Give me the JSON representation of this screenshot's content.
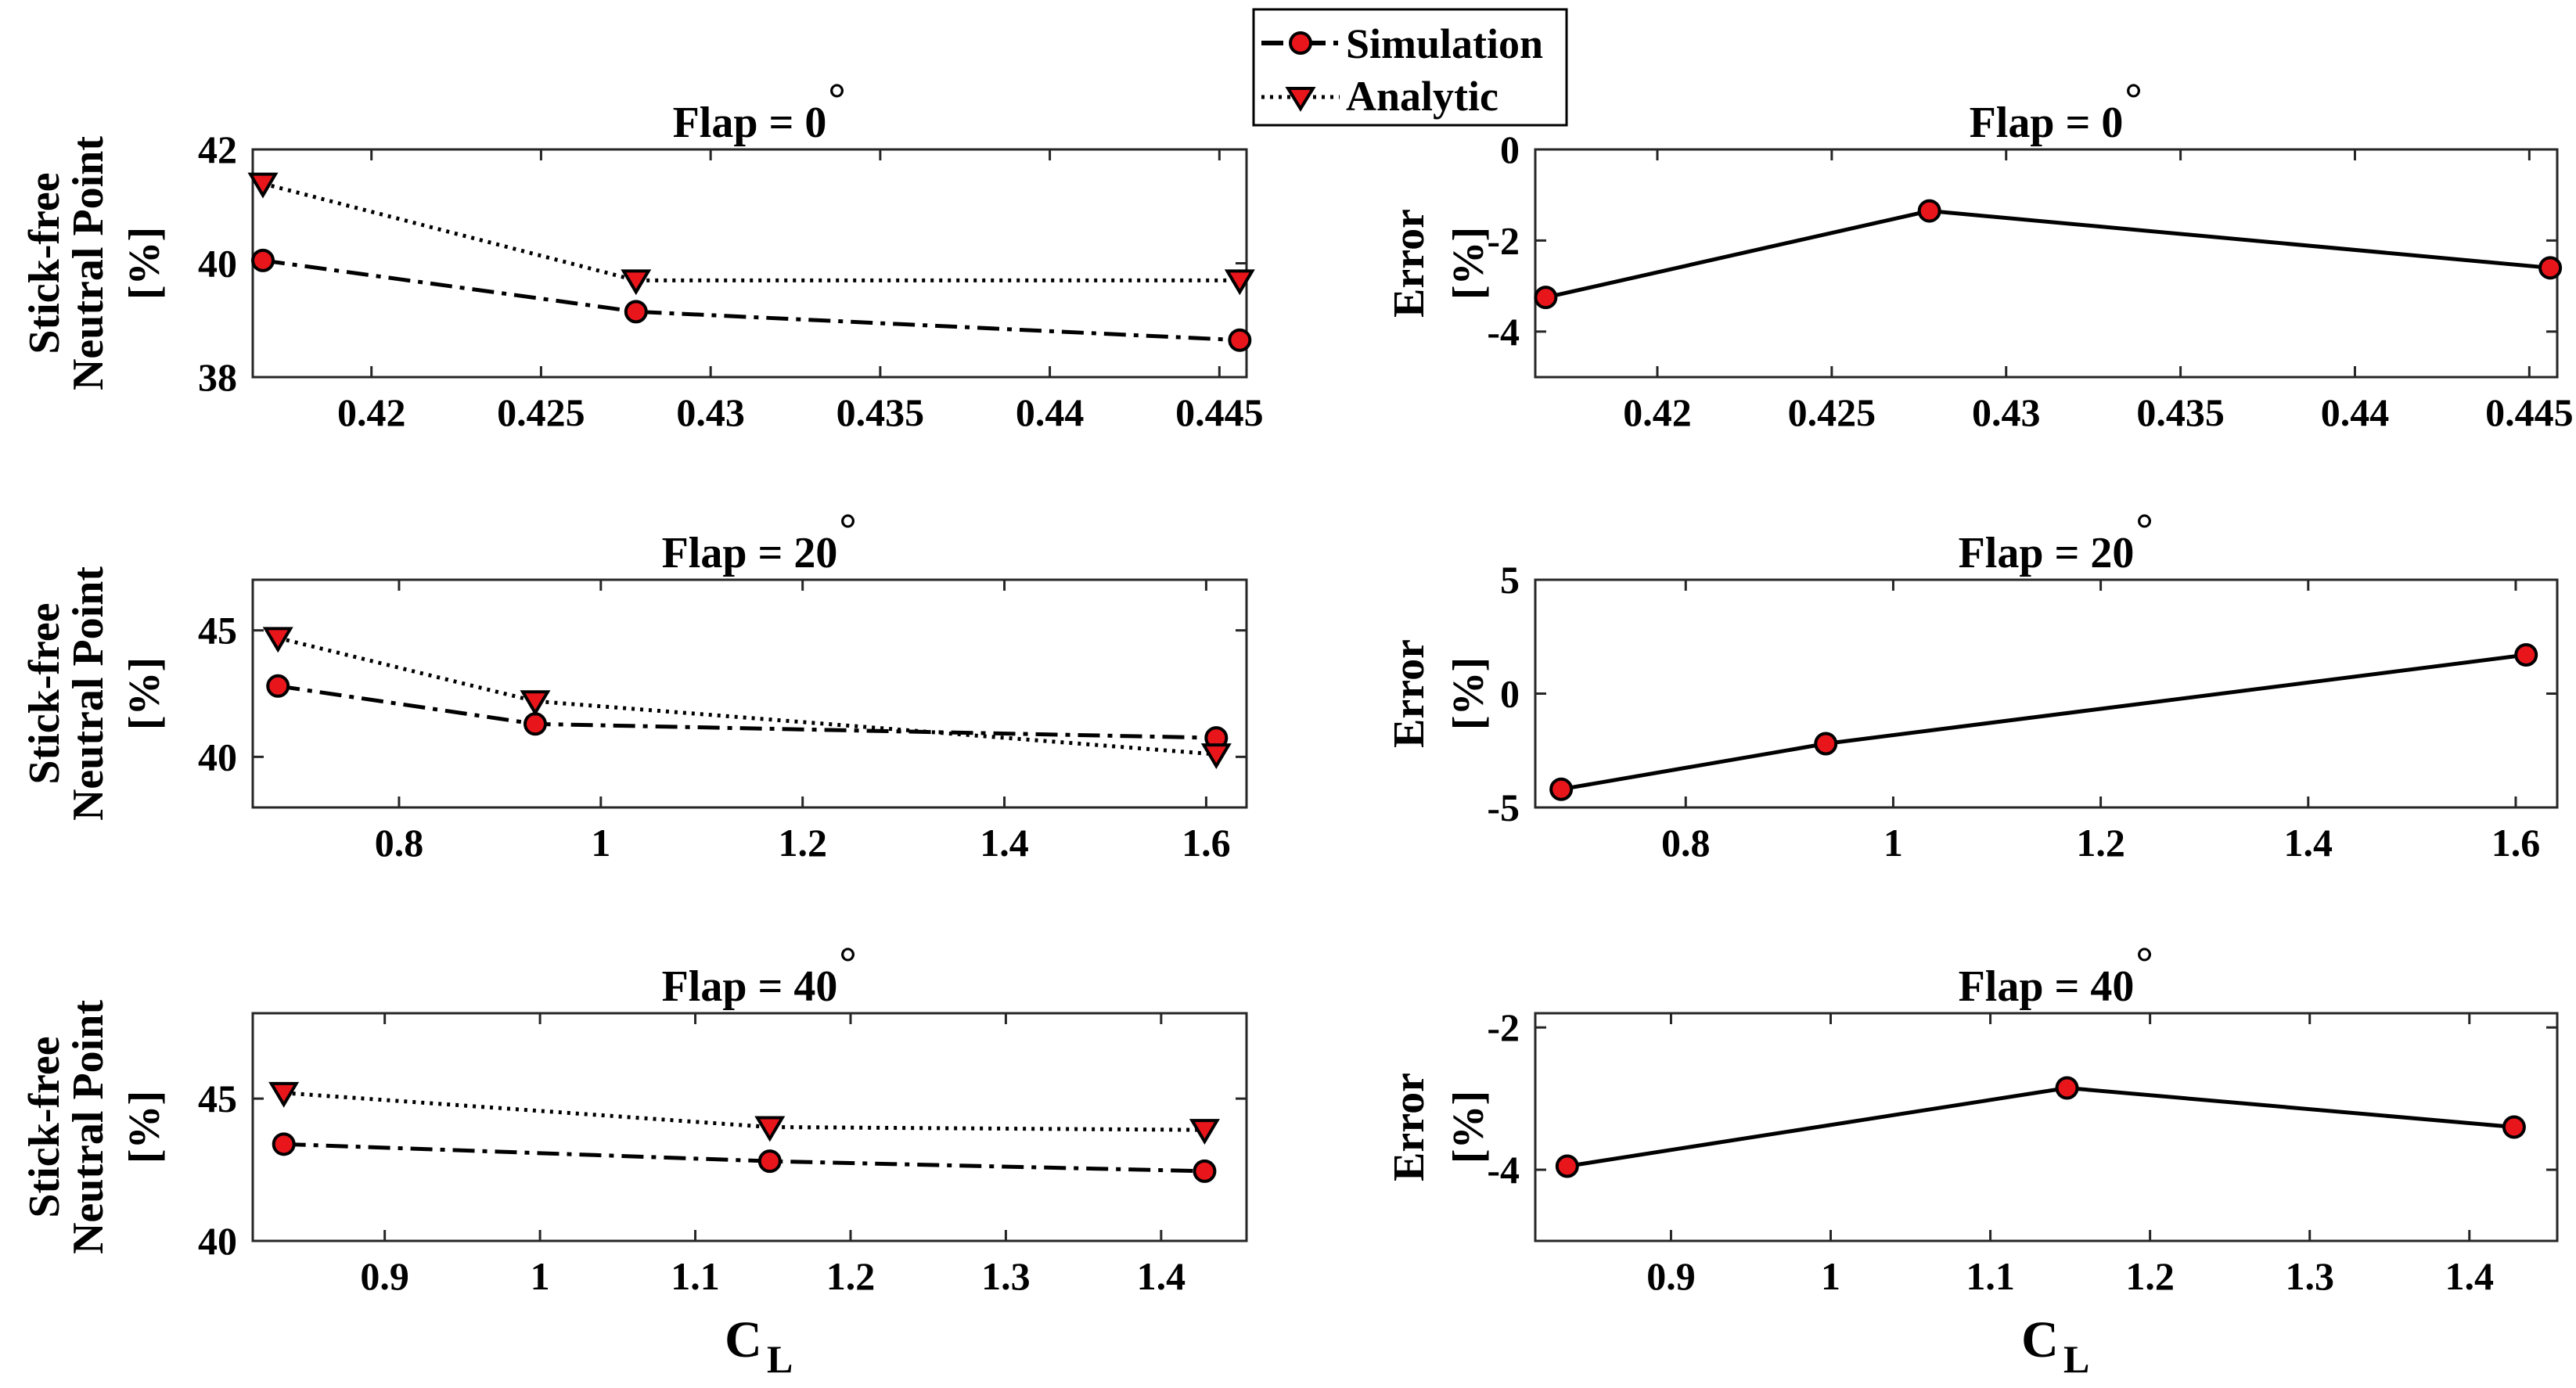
{
  "legend": {
    "position": "top-center",
    "entries": [
      {
        "label": "Simulation",
        "style": "dash-dot",
        "marker": "circle"
      },
      {
        "label": "Analytic",
        "style": "dotted",
        "marker": "triangle-down"
      }
    ]
  },
  "colors": {
    "marker_fill": "#e8151b",
    "line": "#000000",
    "background": "#ffffff"
  },
  "chart_data": [
    {
      "type": "line",
      "title": "Flap = 0",
      "title_degree": "°",
      "ylabel": [
        "Stick-free",
        "Neutral Point",
        "[%]"
      ],
      "xlabel": "",
      "xlim": [
        0.4165,
        0.4458
      ],
      "ylim": [
        38,
        42
      ],
      "xticks": [
        0.42,
        0.425,
        0.43,
        0.435,
        0.44,
        0.445
      ],
      "xtick_labels": [
        "0.42",
        "0.425",
        "0.43",
        "0.435",
        "0.44",
        "0.445"
      ],
      "yticks": [
        38,
        40,
        42
      ],
      "ytick_labels": [
        "38",
        "40",
        "42"
      ],
      "x": [
        0.4168,
        0.4278,
        0.4456
      ],
      "series": [
        {
          "name": "Simulation",
          "values": [
            40.05,
            39.15,
            38.65
          ]
        },
        {
          "name": "Analytic",
          "values": [
            41.4,
            39.7,
            39.7
          ]
        }
      ]
    },
    {
      "type": "line",
      "title": "Flap = 0",
      "title_degree": "°",
      "ylabel": [
        "Error",
        "[%]"
      ],
      "xlabel": "",
      "xlim": [
        0.4165,
        0.4458
      ],
      "ylim": [
        -5,
        0
      ],
      "xticks": [
        0.42,
        0.425,
        0.43,
        0.435,
        0.44,
        0.445
      ],
      "xtick_labels": [
        "0.42",
        "0.425",
        "0.43",
        "0.435",
        "0.44",
        "0.445"
      ],
      "yticks": [
        -4,
        -2,
        0
      ],
      "ytick_labels": [
        "-4",
        "-2",
        "0"
      ],
      "x": [
        0.4168,
        0.4278,
        0.4456
      ],
      "series": [
        {
          "name": "Error",
          "values": [
            -3.25,
            -1.35,
            -2.6
          ]
        }
      ]
    },
    {
      "type": "line",
      "title": "Flap = 20",
      "title_degree": "°",
      "ylabel": [
        "Stick-free",
        "Neutral Point",
        "[%]"
      ],
      "xlabel": "",
      "xlim": [
        0.655,
        1.64
      ],
      "ylim": [
        38,
        47
      ],
      "xticks": [
        0.8,
        1.0,
        1.2,
        1.4,
        1.6
      ],
      "xtick_labels": [
        "0.8",
        "1",
        "1.2",
        "1.4",
        "1.6"
      ],
      "yticks": [
        40,
        45
      ],
      "ytick_labels": [
        "40",
        "45"
      ],
      "x": [
        0.68,
        0.935,
        1.61
      ],
      "series": [
        {
          "name": "Simulation",
          "values": [
            42.8,
            41.3,
            40.75
          ]
        },
        {
          "name": "Analytic",
          "values": [
            44.7,
            42.2,
            40.1
          ]
        }
      ]
    },
    {
      "type": "line",
      "title": "Flap = 20",
      "title_degree": "°",
      "ylabel": [
        "Error",
        "[%]"
      ],
      "xlabel": "",
      "xlim": [
        0.655,
        1.64
      ],
      "ylim": [
        -5,
        5
      ],
      "xticks": [
        0.8,
        1.0,
        1.2,
        1.4,
        1.6
      ],
      "xtick_labels": [
        "0.8",
        "1",
        "1.2",
        "1.4",
        "1.6"
      ],
      "yticks": [
        -5,
        0,
        5
      ],
      "ytick_labels": [
        "-5",
        "0",
        "5"
      ],
      "x": [
        0.68,
        0.935,
        1.61
      ],
      "series": [
        {
          "name": "Error",
          "values": [
            -4.2,
            -2.2,
            1.7
          ]
        }
      ]
    },
    {
      "type": "line",
      "title": "Flap = 40",
      "title_degree": "°",
      "ylabel": [
        "Stick-free",
        "Neutral Point",
        "[%]"
      ],
      "xlabel": "C",
      "xlabel_sub": "L",
      "xlim": [
        0.815,
        1.455
      ],
      "ylim": [
        40,
        48
      ],
      "xticks": [
        0.9,
        1.0,
        1.1,
        1.2,
        1.3,
        1.4
      ],
      "xtick_labels": [
        "0.9",
        "1",
        "1.1",
        "1.2",
        "1.3",
        "1.4"
      ],
      "yticks": [
        40,
        45
      ],
      "ytick_labels": [
        "40",
        "45"
      ],
      "x": [
        0.835,
        1.148,
        1.428
      ],
      "series": [
        {
          "name": "Simulation",
          "values": [
            43.4,
            42.8,
            42.45
          ]
        },
        {
          "name": "Analytic",
          "values": [
            45.2,
            44.0,
            43.9
          ]
        }
      ]
    },
    {
      "type": "line",
      "title": "Flap = 40",
      "title_degree": "°",
      "ylabel": [
        "Error",
        "[%]"
      ],
      "xlabel": "C",
      "xlabel_sub": "L",
      "xlim": [
        0.815,
        1.455
      ],
      "ylim": [
        -5,
        -1.8
      ],
      "xticks": [
        0.9,
        1.0,
        1.1,
        1.2,
        1.3,
        1.4
      ],
      "xtick_labels": [
        "0.9",
        "1",
        "1.1",
        "1.2",
        "1.3",
        "1.4"
      ],
      "yticks": [
        -4,
        -2
      ],
      "ytick_labels": [
        "-4",
        "-2"
      ],
      "x": [
        0.835,
        1.148,
        1.428
      ],
      "series": [
        {
          "name": "Error",
          "values": [
            -3.95,
            -2.85,
            -3.4
          ]
        }
      ]
    }
  ]
}
